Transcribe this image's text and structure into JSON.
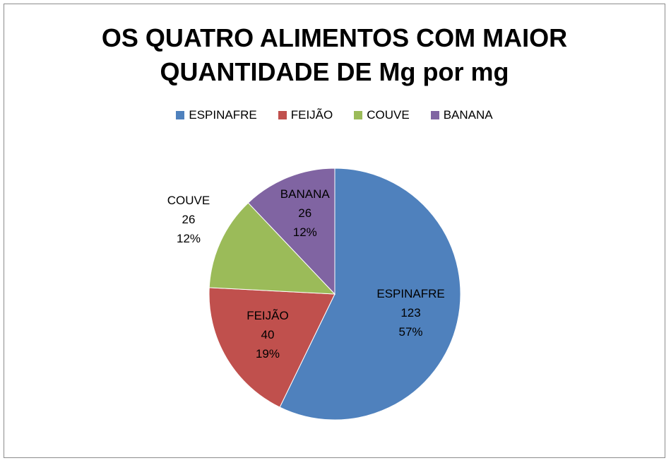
{
  "chart_data": {
    "type": "pie",
    "title_lines": [
      "OS QUATRO ALIMENTOS COM MAIOR",
      "QUANTIDADE DE Mg por mg"
    ],
    "legend_position": "top",
    "slices": [
      {
        "name": "ESPINAFRE",
        "value": 123,
        "percent": "57%",
        "color": "#4F81BD"
      },
      {
        "name": "FEIJÃO",
        "value": 40,
        "percent": "19%",
        "color": "#C0504D"
      },
      {
        "name": "COUVE",
        "value": 26,
        "percent": "12%",
        "color": "#9BBB59"
      },
      {
        "name": "BANANA",
        "value": 26,
        "percent": "12%",
        "color": "#8064A2"
      }
    ]
  }
}
